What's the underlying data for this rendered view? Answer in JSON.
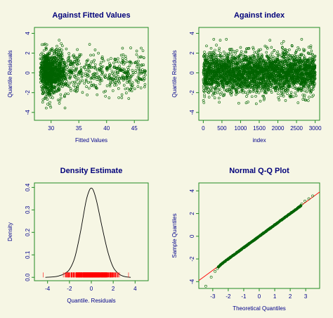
{
  "page": {
    "background": "#f6f6e4",
    "frame_color": "#228b22",
    "title_color": "#00007a",
    "axis_text_color": "#00008b",
    "point_color": "#006400",
    "rug_color": "#ff0000"
  },
  "chart_data": [
    {
      "id": "fitted",
      "type": "scatter",
      "title": "Against Fitted Values",
      "xlabel": "Fitted Values",
      "ylabel": "Quantile Residuals",
      "xlim": [
        27,
        47.5
      ],
      "ylim": [
        -4.8,
        4.6
      ],
      "xticks": [
        30,
        35,
        40,
        45
      ],
      "yticks": [
        -4,
        -2,
        0,
        2,
        4
      ],
      "n_points": 1500,
      "x_range": [
        28,
        47
      ],
      "y_range": [
        -4.6,
        3.6
      ],
      "dense_x_range": [
        28,
        34
      ]
    },
    {
      "id": "index",
      "type": "scatter",
      "title": "Against  index",
      "xlabel": "index",
      "ylabel": "Quantile Residuals",
      "xlim": [
        -120,
        3120
      ],
      "ylim": [
        -4.8,
        4.6
      ],
      "xticks": [
        0,
        500,
        1000,
        1500,
        2000,
        2500,
        3000
      ],
      "yticks": [
        -4,
        -2,
        0,
        2,
        4
      ],
      "n_points": 3000,
      "x_range": [
        1,
        3000
      ],
      "y_range": [
        -4.6,
        3.4
      ]
    },
    {
      "id": "density",
      "type": "line",
      "title": "Density Estimate",
      "xlabel": "Quantile. Residuals",
      "ylabel": "Density",
      "xlim": [
        -5.2,
        5.2
      ],
      "ylim": [
        -0.015,
        0.42
      ],
      "xticks": [
        -4,
        -2,
        0,
        2,
        4
      ],
      "yticks": [
        0.0,
        0.1,
        0.2,
        0.3,
        0.4
      ],
      "ytick_labels": [
        "0.0",
        "0.1",
        "0.2",
        "0.3",
        "0.4"
      ],
      "series": [
        {
          "x": [
            -4.2,
            -3.5,
            -3.0,
            -2.5,
            -2.0,
            -1.5,
            -1.0,
            -0.5,
            -0.2,
            0.0,
            0.2,
            0.5,
            1.0,
            1.5,
            2.0,
            2.5,
            3.0,
            3.6
          ],
          "y": [
            0.0,
            0.002,
            0.006,
            0.015,
            0.035,
            0.09,
            0.2,
            0.335,
            0.385,
            0.397,
            0.385,
            0.335,
            0.22,
            0.115,
            0.045,
            0.016,
            0.004,
            0.0
          ]
        }
      ],
      "rug": {
        "x_range": [
          -3.1,
          2.9
        ],
        "outliers": [
          -4.4,
          3.4
        ],
        "n": 500
      }
    },
    {
      "id": "qq",
      "type": "scatter",
      "title": "Normal Q-Q Plot",
      "xlabel": "Theoretical Quantiles",
      "ylabel": "Sample Quantiles",
      "xlim": [
        -3.9,
        3.9
      ],
      "ylim": [
        -4.6,
        4.7
      ],
      "xticks": [
        -3,
        -2,
        -1,
        0,
        1,
        2,
        3
      ],
      "yticks": [
        -4,
        -2,
        0,
        2,
        4
      ],
      "points_x_range": [
        -3.5,
        3.5
      ],
      "reference_line": {
        "slope": 1.0,
        "intercept": 0.0,
        "color": "#ff0000"
      },
      "lower_tail_points": [
        [
          -3.45,
          -4.4
        ],
        [
          -3.1,
          -3.6
        ],
        [
          -2.85,
          -3.1
        ],
        [
          -2.7,
          -2.85
        ]
      ],
      "upper_tail_points": [
        [
          2.75,
          2.85
        ],
        [
          2.95,
          3.1
        ],
        [
          3.2,
          3.3
        ],
        [
          3.45,
          3.55
        ]
      ]
    }
  ]
}
